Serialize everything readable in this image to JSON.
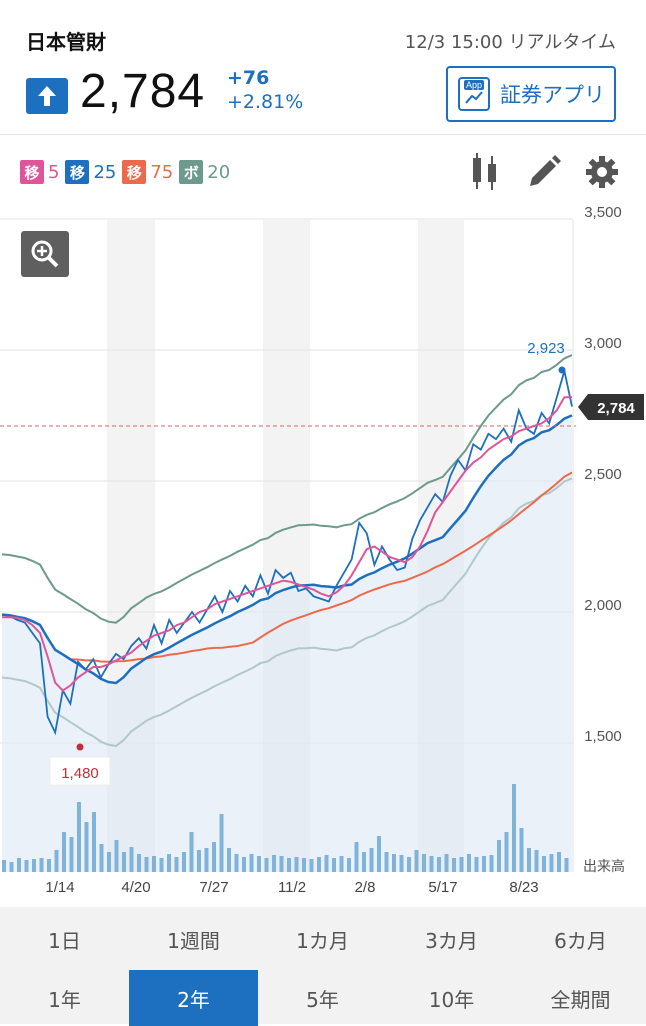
{
  "header": {
    "stock_name": "日本管財",
    "timestamp": "12/3 15:00 リアルタイム",
    "price": "2,784",
    "change": "+76",
    "change_pct": "+2.81%",
    "app_button_label": "証券アプリ",
    "app_icon_label": "App",
    "direction_icon": "arrow-up-icon"
  },
  "indicators": [
    {
      "tag": "移",
      "value": "5",
      "color": "#e0559a"
    },
    {
      "tag": "移",
      "value": "25",
      "color": "#1d6fbf"
    },
    {
      "tag": "移",
      "value": "75",
      "color": "#ec6a4c"
    },
    {
      "tag": "ボ",
      "value": "20",
      "color": "#6d9a8d"
    }
  ],
  "toolbar_icons": [
    "candlestick-icon",
    "pencil-icon",
    "gear-icon"
  ],
  "chart_data": {
    "type": "line",
    "y_ticks": [
      "3,500",
      "3,000",
      "2,500",
      "2,000",
      "1,500"
    ],
    "y_tick_values": [
      3500,
      3000,
      2500,
      2000,
      1500
    ],
    "ylim": [
      1000,
      3500
    ],
    "x_tick_labels": [
      "1/14",
      "4/20",
      "7/27",
      "11/2",
      "2/8",
      "5/17",
      "8/23"
    ],
    "volume_label": "出来高",
    "high_label": "2,923",
    "low_label": "1,480",
    "current_label": "2,784",
    "current_value": 2784,
    "series": [
      {
        "color": "#1d6fbf",
        "values": [
          1990,
          1985,
          1970,
          1960,
          1920,
          1880,
          1600,
          1540,
          1700,
          1650,
          1810,
          1780,
          1820,
          1750,
          1800,
          1840,
          1820,
          1870,
          1900,
          1860,
          1950,
          1880,
          1970,
          1920,
          1960,
          2000,
          1960,
          2010,
          2060,
          2000,
          2080,
          2040,
          2100,
          2060,
          2140,
          2070,
          2160,
          2130,
          2150,
          2080,
          2090,
          2060,
          2050,
          2040,
          2100,
          2150,
          2200,
          2340,
          2300,
          2180,
          2250,
          2200,
          2160,
          2170,
          2280,
          2350,
          2400,
          2450,
          2420,
          2520,
          2580,
          2540,
          2640,
          2620,
          2680,
          2660,
          2700,
          2650,
          2770,
          2700,
          2680,
          2760,
          2720,
          2820,
          2920,
          2784
        ]
      },
      {
        "color": "#e0559a",
        "values": [
          1980,
          1980,
          1978,
          1970,
          1950,
          1920,
          1830,
          1730,
          1700,
          1720,
          1750,
          1770,
          1790,
          1790,
          1800,
          1815,
          1830,
          1845,
          1870,
          1890,
          1910,
          1920,
          1930,
          1950,
          1960,
          1980,
          2000,
          2010,
          2030,
          2040,
          2050,
          2060,
          2070,
          2080,
          2090,
          2100,
          2110,
          2120,
          2115,
          2105,
          2095,
          2085,
          2070,
          2060,
          2075,
          2100,
          2140,
          2190,
          2240,
          2250,
          2230,
          2210,
          2200,
          2190,
          2210,
          2250,
          2310,
          2380,
          2420,
          2460,
          2500,
          2540,
          2570,
          2590,
          2620,
          2640,
          2660,
          2670,
          2690,
          2700,
          2710,
          2720,
          2740,
          2770,
          2820,
          2820
        ]
      }
    ]
  },
  "periods_row1": [
    "1日",
    "1週間",
    "1カ月",
    "3カ月",
    "6カ月"
  ],
  "periods_row2": [
    "1年",
    "2年",
    "5年",
    "10年",
    "全期間"
  ],
  "active_period": "2年"
}
